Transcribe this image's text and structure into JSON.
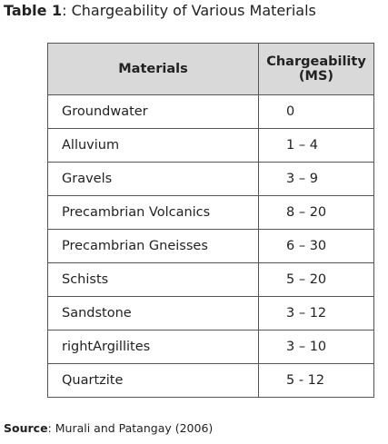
{
  "title": {
    "label": "Table 1",
    "text": ": Chargeability of Various Materials"
  },
  "table": {
    "header": [
      "Materials",
      [
        "Chargeability",
        "(MS)"
      ]
    ],
    "rows": [
      [
        "Groundwater",
        "0"
      ],
      [
        "Alluvium",
        "1 – 4"
      ],
      [
        "Gravels",
        "3 – 9"
      ],
      [
        "Precambrian Volcanics",
        "8 – 20"
      ],
      [
        "Precambrian Gneisses",
        "6 – 30"
      ],
      [
        "Schists",
        "5 – 20"
      ],
      [
        "Sandstone",
        "3 – 12"
      ],
      [
        "rightArgillites",
        "3 – 10"
      ],
      [
        "Quartzite",
        "5 - 12"
      ]
    ]
  },
  "source": {
    "label": "Source",
    "text": ": Murali and Patangay (2006)"
  }
}
